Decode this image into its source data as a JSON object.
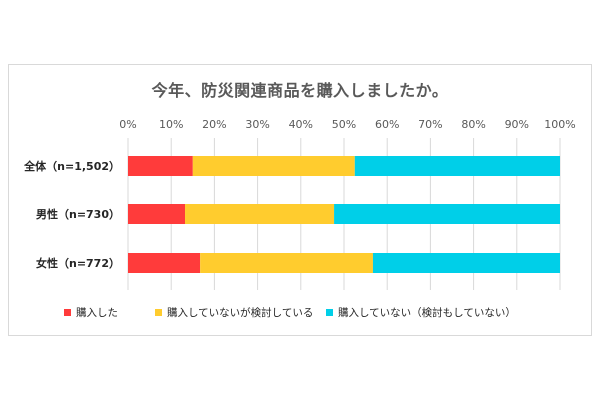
{
  "chart_data": {
    "type": "bar",
    "orientation": "horizontal",
    "stacked": true,
    "normalized": true,
    "title": "今年、防災関連商品を購入しましたか。",
    "categories": [
      "全体（n=1,502）",
      "男性（n=730）",
      "女性（n=772）"
    ],
    "series": [
      {
        "name": "購入した",
        "color": "#ff3b3b",
        "values": [
          15.0,
          13.2,
          16.7
        ]
      },
      {
        "name": "購入していないが検討している",
        "color": "#ffcc2e",
        "values": [
          37.5,
          34.5,
          40.0
        ]
      },
      {
        "name": "購入していない（検討もしていない）",
        "color": "#00cfe8",
        "values": [
          47.5,
          52.3,
          43.3
        ]
      }
    ],
    "xlim": [
      0,
      100
    ],
    "x_ticks": [
      "0%",
      "10%",
      "20%",
      "30%",
      "40%",
      "50%",
      "60%",
      "70%",
      "80%",
      "90%",
      "100%"
    ],
    "grid": true,
    "legend_position": "bottom"
  }
}
